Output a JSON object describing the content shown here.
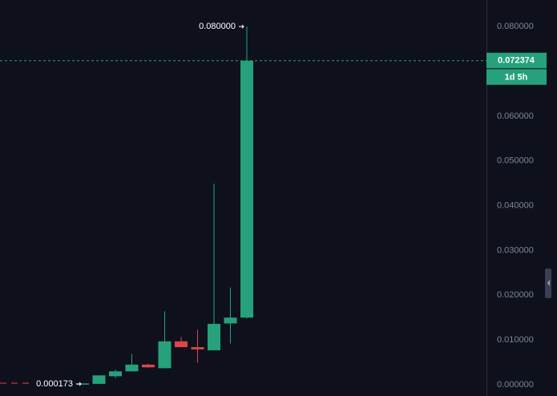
{
  "chart_data": {
    "type": "candlestick",
    "categories": [
      null,
      null,
      null,
      null,
      null,
      null,
      null,
      null,
      null,
      null,
      null
    ],
    "open": [
      0.0002,
      0.0002,
      0.0019,
      0.003,
      0.0045,
      0.0037,
      0.0097,
      0.0084,
      0.0077,
      0.0137,
      0.015
    ],
    "high": [
      0.0003,
      0.0021,
      0.0034,
      0.0069,
      0.0047,
      0.0164,
      0.0107,
      0.0123,
      0.0449,
      0.0217,
      0.08
    ],
    "low": [
      0.000173,
      0.0002,
      0.0015,
      0.003,
      0.0038,
      0.0037,
      0.0084,
      0.0049,
      0.0077,
      0.0092,
      0.0148
    ],
    "close": [
      0.0003,
      0.0021,
      0.003,
      0.0045,
      0.0039,
      0.0097,
      0.0084,
      0.0079,
      0.0136,
      0.015,
      0.072374
    ],
    "up_color": "#26a17b",
    "down_color": "#e0434c",
    "ylim": [
      -2e-06,
      0.0854
    ],
    "yticks": [
      {
        "value": 0,
        "label": "0.000000"
      },
      {
        "value": 0.01,
        "label": "0.010000"
      },
      {
        "value": 0.02,
        "label": "0.020000"
      },
      {
        "value": 0.03,
        "label": "0.030000"
      },
      {
        "value": 0.04,
        "label": "0.040000"
      },
      {
        "value": 0.05,
        "label": "0.050000"
      },
      {
        "value": 0.06,
        "label": "0.060000"
      },
      {
        "value": 0.08,
        "label": "0.080000"
      }
    ],
    "high_marker": {
      "value": 0.08,
      "label": "0.080000"
    },
    "low_marker": {
      "value": 0.000173,
      "label": "0.000173"
    },
    "last_price": {
      "value": 0.072374,
      "label": "0.072374"
    },
    "countdown": "1d 5h"
  }
}
